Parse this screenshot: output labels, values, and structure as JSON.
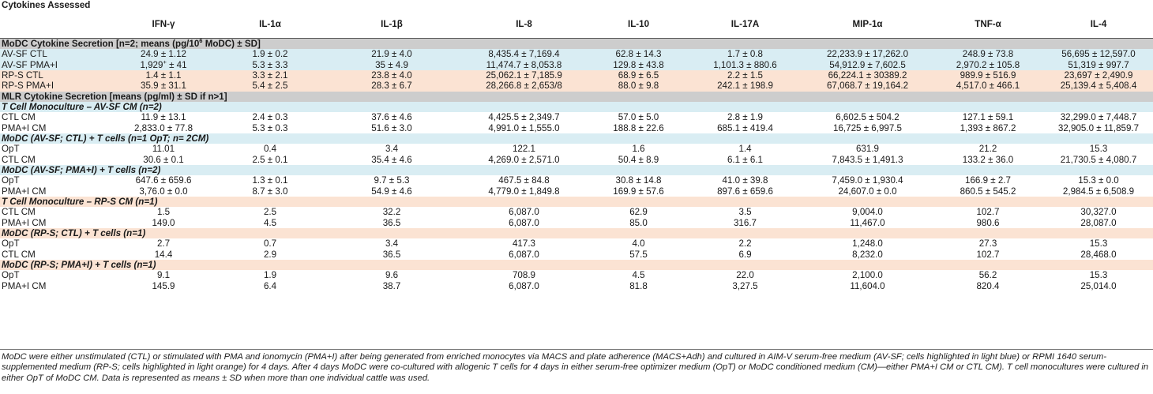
{
  "header": {
    "title": "Cytokines Assessed",
    "columns": [
      "IFN-γ",
      "IL-1α",
      "IL-1β",
      "IL-8",
      "IL-10",
      "IL-17A",
      "MIP-1α",
      "TNF-α",
      "IL-4"
    ]
  },
  "section1": {
    "title_pre": "MoDC Cytokine Secretion [n=2; means (pg/10",
    "title_sup": "6",
    "title_post": " MoDC) ± SD]"
  },
  "rows1": [
    {
      "label": "AV-SF CTL",
      "values": [
        "24.9 ± 1.12",
        "1.9 ± 0.2",
        "21.9 ± 4.0",
        "8,435.4 ± 7,169.4",
        "62.8 ± 14.3",
        "1.7 ± 0.8",
        "22,233.9 ± 17,262.0",
        "248.9 ± 73.8",
        "56,695 ± 12,597.0"
      ]
    },
    {
      "label": "AV-SF PMA+I",
      "v0_main": "1,929",
      "v0_sup": "+",
      "v0_rest": " ± 41",
      "values": [
        "1,929+ ± 41",
        "5.3 ± 3.3",
        "35 ± 4.9",
        "11,474.7 ± 8,053.8",
        "129.8 ± 43.8",
        "1,101.3 ± 880.6",
        "54,912.9 ± 7,602.5",
        "2,970.2 ± 105.8",
        "51,319 ± 997.7"
      ]
    },
    {
      "label": "RP-S CTL",
      "values": [
        "1.4 ± 1.1",
        "3.3 ± 2.1",
        "23.8 ± 4.0",
        "25,062.1 ± 7,185.9",
        "68.9 ± 6.5",
        "2.2 ± 1.5",
        "66,224.1 ± 30389.2",
        "989.9 ± 516.9",
        "23,697 ± 2,490.9"
      ]
    },
    {
      "label": "RP-S  PMA+I",
      "values": [
        "35.9 ± 31.1",
        "5.4 ± 2.5",
        "28.3 ± 6.7",
        "28,266.8 ± 2,653/8",
        "88.0 ± 9.8",
        "242.1 ± 198.9",
        "67,068.7 ± 19,164.2",
        "4,517.0 ± 466.1",
        "25,139.4 ± 5,408.4"
      ]
    }
  ],
  "section2": {
    "title": "MLR Cytokine Secretion [means (pg/ml) ± SD if n>1]"
  },
  "groups": [
    {
      "title": "T Cell Monoculture – AV-SF CM (n=2)",
      "tone": "blue",
      "rows": [
        {
          "label": "CTL CM",
          "values": [
            "11.9 ± 13.1",
            "2.4 ± 0.3",
            "37.6 ± 4.6",
            "4,425.5 ± 2,349.7",
            "57.0 ± 5.0",
            "2.8 ± 1.9",
            "6,602.5 ± 504.2",
            "127.1 ± 59.1",
            "32,299.0 ± 7,448.7"
          ]
        },
        {
          "label": "PMA+I CM",
          "values": [
            "2,833.0 ± 77.8",
            "5.3 ± 0.3",
            "51.6 ± 3.0",
            "4,991.0 ± 1,555.0",
            "188.8 ± 22.6",
            "685.1 ± 419.4",
            "16,725 ± 6,997.5",
            "1,393 ± 867.2",
            "32,905.0 ± 11,859.7"
          ]
        }
      ]
    },
    {
      "title": "MoDC (AV-SF; CTL) + T cells (n=1 OpT; n= 2CM)",
      "tone": "blue",
      "rows": [
        {
          "label": "OpT",
          "values": [
            "11.01",
            "0.4",
            "3.4",
            "122.1",
            "1.6",
            "1.4",
            "631.9",
            "21.2",
            "15.3"
          ]
        },
        {
          "label": "CTL CM",
          "values": [
            "30.6 ± 0.1",
            "2.5 ± 0.1",
            "35.4 ± 4.6",
            "4,269.0 ± 2,571.0",
            "50.4 ± 8.9",
            "6.1 ± 6.1",
            "7,843.5 ± 1,491.3",
            "133.2 ± 36.0",
            "21,730.5 ± 4,080.7"
          ]
        }
      ]
    },
    {
      "title": "MoDC (AV-SF; PMA+I) + T cells (n=2)",
      "tone": "blue",
      "rows": [
        {
          "label": "OpT",
          "values": [
            "647.6 ± 659.6",
            "1.3 ± 0.1",
            "9.7 ± 5.3",
            "467.5 ± 84.8",
            "30.8 ± 14.8",
            "41.0 ± 39.8",
            "7,459.0 ± 1,930.4",
            "166.9 ± 2.7",
            "15.3 ± 0.0"
          ]
        },
        {
          "label": "PMA+I CM",
          "values": [
            "3,76.0 ± 0.0",
            "8.7 ± 3.0",
            "54.9 ± 4.6",
            "4,779.0 ± 1,849.8",
            "169.9 ± 57.6",
            "897.6 ± 659.6",
            "24,607.0 ± 0.0",
            "860.5 ± 545.2",
            "2,984.5 ± 6,508.9"
          ]
        }
      ]
    },
    {
      "title": "T Cell Monoculture – RP-S CM (n=1)",
      "tone": "orange",
      "rows": [
        {
          "label": "CTL CM",
          "values": [
            "1.5",
            "2.5",
            "32.2",
            "6,087.0",
            "62.9",
            "3.5",
            "9,004.0",
            "102.7",
            "30,327.0"
          ]
        },
        {
          "label": "PMA+I CM",
          "values": [
            "149.0",
            "4.5",
            "36.5",
            "6,087.0",
            "85.0",
            "316.7",
            "11,467.0",
            "980.6",
            "28,087.0"
          ]
        }
      ]
    },
    {
      "title": "MoDC (RP-S; CTL) + T cells (n=1)",
      "tone": "orange",
      "rows": [
        {
          "label": "OpT",
          "values": [
            "2.7",
            "0.7",
            "3.4",
            "417.3",
            "4.0",
            "2.2",
            "1,248.0",
            "27.3",
            "15.3"
          ]
        },
        {
          "label": "CTL CM",
          "values": [
            "14.4",
            "2.9",
            "36.5",
            "6,087.0",
            "57.5",
            "6.9",
            "8,232.0",
            "102.7",
            "28,468.0"
          ]
        }
      ]
    },
    {
      "title": "MoDC (RP-S; PMA+I) + T cells (n=1)",
      "tone": "orange",
      "rows": [
        {
          "label": "OpT",
          "values": [
            "9.1",
            "1.9",
            "9.6",
            "708.9",
            "4.5",
            "22.0",
            "2,100.0",
            "56.2",
            "15.3"
          ]
        },
        {
          "label": "PMA+I CM",
          "values": [
            "145.9",
            "6.4",
            "38.7",
            "6,087.0",
            "81.8",
            "3,27.5",
            "11,604.0",
            "820.4",
            "25,014.0"
          ]
        }
      ]
    }
  ],
  "footnote": "MoDC were either unstimulated (CTL) or stimulated with PMA and ionomycin (PMA+I) after being generated from enriched monocytes via MACS and plate adherence (MACS+Adh) and cultured in AIM-V serum-free medium (AV-SF; cells highlighted in light blue) or RPMI 1640 serum-supplemented medium (RP-S; cells highlighted in light orange) for 4 days. After 4 days MoDC were co-cultured with allogenic T cells for 4 days in either serum-free optimizer medium (OpT) or MoDC conditioned medium (CM)—either PMA+I CM or CTL CM). T cell monocultures were cultured in either OpT of MoDC CM. Data is represented as means ± SD when more than one individual cattle was used."
}
